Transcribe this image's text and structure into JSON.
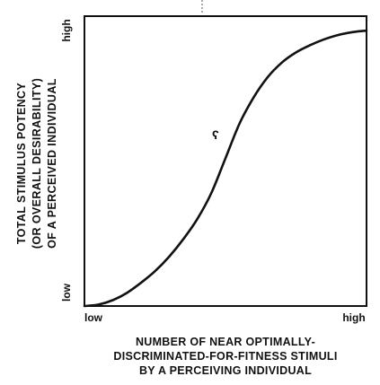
{
  "chart_data": {
    "type": "line",
    "xlabel": [
      "NUMBER OF NEAR OPTIMALLY-",
      "DISCRIMINATED-FOR-FITNESS STIMULI",
      "BY A PERCEIVING INDIVIDUAL"
    ],
    "ylabel": [
      "TOTAL STIMULUS POTENCY",
      "(OR OVERALL DESIRABILITY)",
      "OF A PERCEIVED INDIVIDUAL"
    ],
    "x_tick_labels": [
      "low",
      "high"
    ],
    "y_tick_labels": [
      "low",
      "high"
    ],
    "xlim": [
      0,
      1
    ],
    "ylim": [
      0,
      1
    ],
    "grid": false,
    "series": [
      {
        "x": [
          0.0,
          0.05,
          0.1,
          0.15,
          0.2,
          0.25,
          0.3,
          0.35,
          0.4,
          0.45,
          0.5,
          0.55,
          0.6,
          0.65,
          0.7,
          0.75,
          0.8,
          0.85,
          0.9,
          0.95,
          1.0
        ],
        "values": [
          0.0,
          0.005,
          0.02,
          0.045,
          0.08,
          0.12,
          0.17,
          0.23,
          0.3,
          0.39,
          0.51,
          0.63,
          0.72,
          0.79,
          0.84,
          0.875,
          0.9,
          0.92,
          0.935,
          0.945,
          0.95
        ]
      }
    ],
    "annotations": [
      "ʕ"
    ]
  },
  "colors": {
    "axis": "#111111",
    "line": "#111111"
  }
}
